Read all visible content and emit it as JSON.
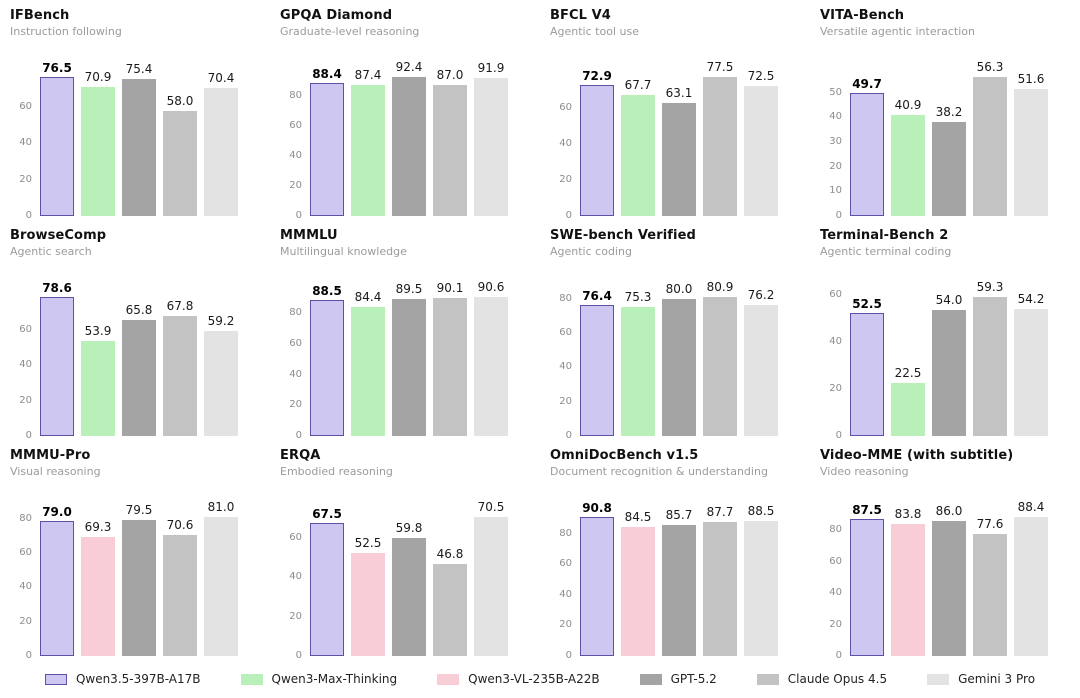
{
  "chart_data": {
    "type": "bar",
    "layout": {
      "rows": 3,
      "cols": 4,
      "grid": false,
      "legend_position": "bottom",
      "background": "#ffffff"
    },
    "models": [
      {
        "name": "Qwen3.5-397B-A17B",
        "fill": "#cdc7f1",
        "edge": "#5a52a5",
        "highlight": true
      },
      {
        "name": "Qwen3-Max-Thinking",
        "fill": "#b9efb9"
      },
      {
        "name": "Qwen3-VL-235B-A22B",
        "fill": "#f9cdd6"
      },
      {
        "name": "GPT-5.2",
        "fill": "#a4a4a4"
      },
      {
        "name": "Claude Opus 4.5",
        "fill": "#c3c3c3"
      },
      {
        "name": "Gemini 3 Pro",
        "fill": "#e3e3e3"
      }
    ],
    "charts": [
      {
        "title": "IFBench",
        "subtitle": "Instruction following",
        "yticks": [
          0,
          20,
          40,
          60
        ],
        "bars": [
          {
            "model": "Qwen3.5-397B-A17B",
            "value": 76.5
          },
          {
            "model": "Qwen3-Max-Thinking",
            "value": 70.9
          },
          {
            "model": "GPT-5.2",
            "value": 75.4
          },
          {
            "model": "Claude Opus 4.5",
            "value": 58.0
          },
          {
            "model": "Gemini 3 Pro",
            "value": 70.4
          }
        ]
      },
      {
        "title": "GPQA Diamond",
        "subtitle": "Graduate-level reasoning",
        "yticks": [
          0,
          20,
          40,
          60,
          80
        ],
        "bars": [
          {
            "model": "Qwen3.5-397B-A17B",
            "value": 88.4
          },
          {
            "model": "Qwen3-Max-Thinking",
            "value": 87.4
          },
          {
            "model": "GPT-5.2",
            "value": 92.4
          },
          {
            "model": "Claude Opus 4.5",
            "value": 87.0
          },
          {
            "model": "Gemini 3 Pro",
            "value": 91.9
          }
        ]
      },
      {
        "title": "BFCL V4",
        "subtitle": "Agentic tool use",
        "yticks": [
          0,
          20,
          40,
          60
        ],
        "bars": [
          {
            "model": "Qwen3.5-397B-A17B",
            "value": 72.9
          },
          {
            "model": "Qwen3-Max-Thinking",
            "value": 67.7
          },
          {
            "model": "GPT-5.2",
            "value": 63.1
          },
          {
            "model": "Claude Opus 4.5",
            "value": 77.5
          },
          {
            "model": "Gemini 3 Pro",
            "value": 72.5
          }
        ]
      },
      {
        "title": "VITA-Bench",
        "subtitle": "Versatile agentic interaction",
        "yticks": [
          0,
          10,
          20,
          30,
          40,
          50
        ],
        "bars": [
          {
            "model": "Qwen3.5-397B-A17B",
            "value": 49.7
          },
          {
            "model": "Qwen3-Max-Thinking",
            "value": 40.9
          },
          {
            "model": "GPT-5.2",
            "value": 38.2
          },
          {
            "model": "Claude Opus 4.5",
            "value": 56.3
          },
          {
            "model": "Gemini 3 Pro",
            "value": 51.6
          }
        ]
      },
      {
        "title": "BrowseComp",
        "subtitle": "Agentic search",
        "yticks": [
          0,
          20,
          40,
          60
        ],
        "bars": [
          {
            "model": "Qwen3.5-397B-A17B",
            "value": 78.6
          },
          {
            "model": "Qwen3-Max-Thinking",
            "value": 53.9
          },
          {
            "model": "GPT-5.2",
            "value": 65.8
          },
          {
            "model": "Claude Opus 4.5",
            "value": 67.8
          },
          {
            "model": "Gemini 3 Pro",
            "value": 59.2
          }
        ]
      },
      {
        "title": "MMMLU",
        "subtitle": "Multilingual knowledge",
        "yticks": [
          0,
          20,
          40,
          60,
          80
        ],
        "bars": [
          {
            "model": "Qwen3.5-397B-A17B",
            "value": 88.5
          },
          {
            "model": "Qwen3-Max-Thinking",
            "value": 84.4
          },
          {
            "model": "GPT-5.2",
            "value": 89.5
          },
          {
            "model": "Claude Opus 4.5",
            "value": 90.1
          },
          {
            "model": "Gemini 3 Pro",
            "value": 90.6
          }
        ]
      },
      {
        "title": "SWE-bench Verified",
        "subtitle": "Agentic coding",
        "yticks": [
          0,
          20,
          40,
          60,
          80
        ],
        "bars": [
          {
            "model": "Qwen3.5-397B-A17B",
            "value": 76.4
          },
          {
            "model": "Qwen3-Max-Thinking",
            "value": 75.3
          },
          {
            "model": "GPT-5.2",
            "value": 80.0
          },
          {
            "model": "Claude Opus 4.5",
            "value": 80.9
          },
          {
            "model": "Gemini 3 Pro",
            "value": 76.2
          }
        ]
      },
      {
        "title": "Terminal-Bench 2",
        "subtitle": "Agentic terminal coding",
        "yticks": [
          0,
          20,
          40,
          60
        ],
        "bars": [
          {
            "model": "Qwen3.5-397B-A17B",
            "value": 52.5
          },
          {
            "model": "Qwen3-Max-Thinking",
            "value": 22.5
          },
          {
            "model": "GPT-5.2",
            "value": 54.0
          },
          {
            "model": "Claude Opus 4.5",
            "value": 59.3
          },
          {
            "model": "Gemini 3 Pro",
            "value": 54.2
          }
        ]
      },
      {
        "title": "MMMU-Pro",
        "subtitle": "Visual reasoning",
        "yticks": [
          0,
          20,
          40,
          60,
          80
        ],
        "bars": [
          {
            "model": "Qwen3.5-397B-A17B",
            "value": 79.0
          },
          {
            "model": "Qwen3-VL-235B-A22B",
            "value": 69.3
          },
          {
            "model": "GPT-5.2",
            "value": 79.5
          },
          {
            "model": "Claude Opus 4.5",
            "value": 70.6
          },
          {
            "model": "Gemini 3 Pro",
            "value": 81.0
          }
        ]
      },
      {
        "title": "ERQA",
        "subtitle": "Embodied reasoning",
        "yticks": [
          0,
          20,
          40,
          60
        ],
        "bars": [
          {
            "model": "Qwen3.5-397B-A17B",
            "value": 67.5
          },
          {
            "model": "Qwen3-VL-235B-A22B",
            "value": 52.5
          },
          {
            "model": "GPT-5.2",
            "value": 59.8
          },
          {
            "model": "Claude Opus 4.5",
            "value": 46.8
          },
          {
            "model": "Gemini 3 Pro",
            "value": 70.5
          }
        ]
      },
      {
        "title": "OmniDocBench v1.5",
        "subtitle": "Document recognition & understanding",
        "yticks": [
          0,
          20,
          40,
          60,
          80
        ],
        "bars": [
          {
            "model": "Qwen3.5-397B-A17B",
            "value": 90.8
          },
          {
            "model": "Qwen3-VL-235B-A22B",
            "value": 84.5
          },
          {
            "model": "GPT-5.2",
            "value": 85.7
          },
          {
            "model": "Claude Opus 4.5",
            "value": 87.7
          },
          {
            "model": "Gemini 3 Pro",
            "value": 88.5
          }
        ]
      },
      {
        "title": "Video-MME (with subtitle)",
        "subtitle": "Video reasoning",
        "yticks": [
          0,
          20,
          40,
          60,
          80
        ],
        "bars": [
          {
            "model": "Qwen3.5-397B-A17B",
            "value": 87.5
          },
          {
            "model": "Qwen3-VL-235B-A22B",
            "value": 83.8
          },
          {
            "model": "GPT-5.2",
            "value": 86.0
          },
          {
            "model": "Claude Opus 4.5",
            "value": 77.6
          },
          {
            "model": "Gemini 3 Pro",
            "value": 88.4
          }
        ]
      }
    ],
    "legend": [
      "Qwen3.5-397B-A17B",
      "Qwen3-Max-Thinking",
      "Qwen3-VL-235B-A22B",
      "GPT-5.2",
      "Claude Opus 4.5",
      "Gemini 3 Pro"
    ]
  }
}
